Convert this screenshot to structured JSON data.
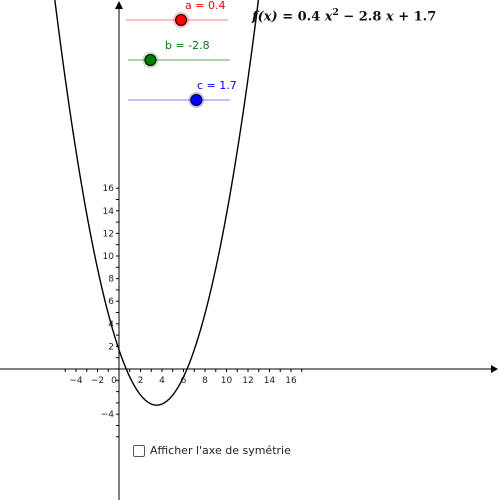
{
  "formula": {
    "lhs": "f(x)",
    "equals": "=",
    "a": "0.4",
    "x2": "x",
    "pow": "2",
    "b_term": "− 2.8",
    "x1": "x",
    "c_term": "+ 1.7"
  },
  "sliders": [
    {
      "label": "a = 0.4",
      "value": 0.4,
      "min": -5,
      "max": 5,
      "color": "#ff0000",
      "track_color": "#f08080"
    },
    {
      "label": "b = -2.8",
      "value": -2.8,
      "min": -5,
      "max": 5,
      "color": "#008000",
      "track_color": "#66aa66"
    },
    {
      "label": "c = 1.7",
      "value": 1.7,
      "min": -5,
      "max": 5,
      "color": "#0000ff",
      "track_color": "#8080ff"
    }
  ],
  "checkbox": {
    "label": "Afficher l'axe de symétrie",
    "checked": false
  },
  "axes": {
    "x_ticks": [
      "−4",
      "−2",
      "0",
      "2",
      "4",
      "6",
      "8",
      "10",
      "12",
      "14",
      "16"
    ],
    "x_tick_values": [
      -4,
      -2,
      0,
      2,
      4,
      6,
      8,
      10,
      12,
      14,
      16
    ],
    "y_ticks": [
      "−4",
      "2",
      "4",
      "6",
      "8",
      "10",
      "12",
      "14",
      "16"
    ],
    "y_tick_values": [
      -4,
      2,
      4,
      6,
      8,
      10,
      12,
      14,
      16
    ],
    "x_range": [
      -5.2,
      17
    ],
    "y_range": [
      -5.5,
      16.5
    ]
  },
  "function": {
    "a": 0.4,
    "b": -2.8,
    "c": 1.7,
    "color": "#000000"
  }
}
